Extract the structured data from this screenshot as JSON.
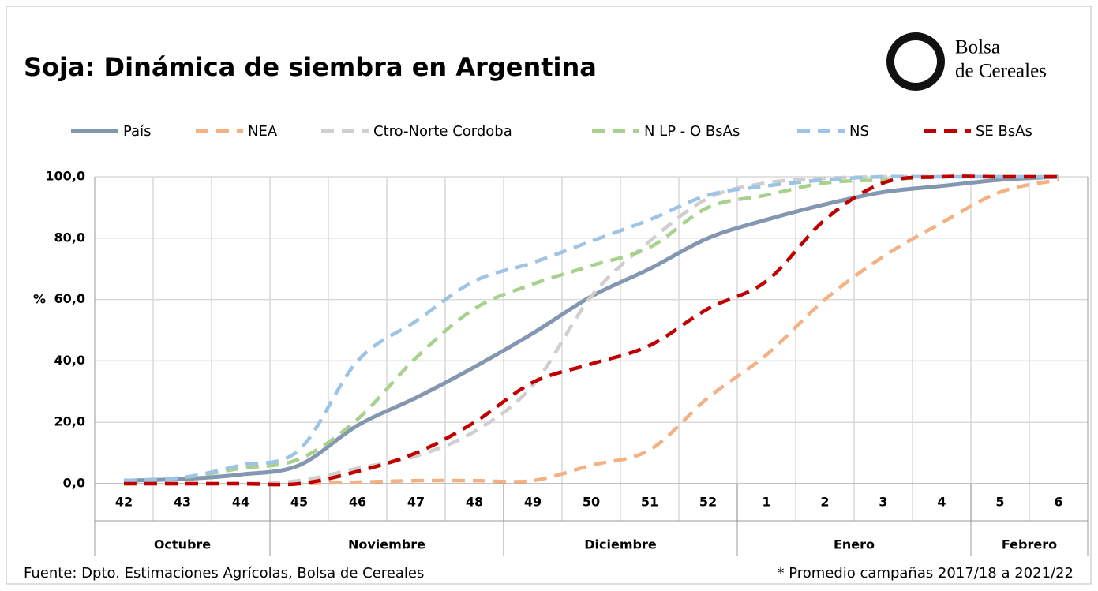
{
  "chart_data": {
    "type": "line",
    "title": "Soja: Dinámica de siembra en Argentina",
    "logo": [
      "Bolsa",
      "de Cereales"
    ],
    "y_label": "%",
    "categories": [
      "42",
      "43",
      "44",
      "45",
      "46",
      "47",
      "48",
      "49",
      "50",
      "51",
      "52",
      "1",
      "2",
      "3",
      "4",
      "5",
      "6"
    ],
    "x_groups": [
      {
        "label": "Octubre",
        "span": 3
      },
      {
        "label": "Noviembre",
        "span": 4
      },
      {
        "label": "Diciembre",
        "span": 4
      },
      {
        "label": "Enero",
        "span": 4
      },
      {
        "label": "Febrero",
        "span": 2
      }
    ],
    "series": [
      {
        "name": "País",
        "color": "#8497b0",
        "line_style": "solid",
        "values": [
          1,
          1.5,
          3,
          6,
          19,
          28,
          38,
          49,
          61,
          70,
          80,
          86,
          91,
          95,
          97,
          99,
          100
        ]
      },
      {
        "name": "NEA",
        "color": "#f4b183",
        "line_style": "dashed",
        "values": [
          0,
          0,
          0,
          0,
          0.5,
          1,
          1,
          1,
          6,
          11,
          28,
          42,
          60,
          74,
          85,
          95,
          99
        ]
      },
      {
        "name": "Ctro-Norte Cordoba",
        "color": "#d0cece",
        "line_style": "dashed",
        "values": [
          0,
          0,
          0,
          1,
          5,
          9,
          17,
          32,
          61,
          79,
          93,
          98,
          99.5,
          100,
          100,
          100,
          100
        ]
      },
      {
        "name": "N LP - O BsAs",
        "color": "#a9d18e",
        "line_style": "dashed",
        "values": [
          1,
          2,
          5,
          8,
          21,
          41,
          57,
          65,
          71,
          77,
          90,
          94,
          98,
          99,
          100,
          100,
          100
        ]
      },
      {
        "name": "NS",
        "color": "#9dc3e6",
        "line_style": "dashed",
        "values": [
          1,
          2,
          6,
          11,
          40,
          53,
          66,
          72,
          79,
          86,
          94,
          97,
          99,
          100,
          100,
          100,
          100
        ]
      },
      {
        "name": "SE BsAs",
        "color": "#c00000",
        "line_style": "dashed",
        "values": [
          0,
          0,
          0,
          0,
          4,
          10,
          20,
          33,
          39,
          45,
          57,
          66,
          86,
          98,
          100,
          100,
          100
        ]
      }
    ],
    "ylim": [
      0,
      100
    ],
    "yticks": [
      {
        "value": 0,
        "label": "0,0"
      },
      {
        "value": 20,
        "label": "20,0"
      },
      {
        "value": 40,
        "label": "40,0"
      },
      {
        "value": 60,
        "label": "60,0"
      },
      {
        "value": 80,
        "label": "80,0"
      },
      {
        "value": 100,
        "label": "100,0"
      }
    ],
    "grid": true,
    "source": "Fuente: Dpto. Estimaciones Agrícolas, Bolsa de Cereales",
    "note": "* Promedio campañas 2017/18 a 2021/22"
  }
}
